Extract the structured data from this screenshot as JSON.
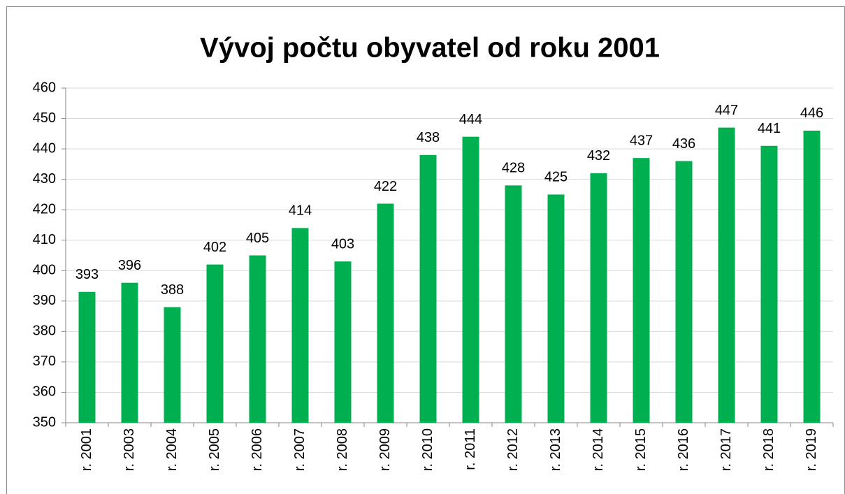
{
  "chart_data": {
    "type": "bar",
    "title": "Vývoj počtu obyvatel od roku 2001",
    "categories": [
      "r. 2001",
      "r. 2003",
      "r. 2004",
      "r. 2005",
      "r. 2006",
      "r. 2007",
      "r. 2008",
      "r. 2009",
      "r. 2010",
      "r. 2011",
      "r. 2012",
      "r. 2013",
      "r. 2014",
      "r. 2015",
      "r. 2016",
      "r. 2017",
      "r. 2018",
      "r. 2019"
    ],
    "values": [
      393,
      396,
      388,
      402,
      405,
      414,
      403,
      422,
      438,
      444,
      428,
      425,
      432,
      437,
      436,
      447,
      441,
      446
    ],
    "color": "#00b050",
    "ylim": [
      350,
      460
    ],
    "yticks": [
      350,
      360,
      370,
      380,
      390,
      400,
      410,
      420,
      430,
      440,
      450,
      460
    ],
    "grid": true
  }
}
